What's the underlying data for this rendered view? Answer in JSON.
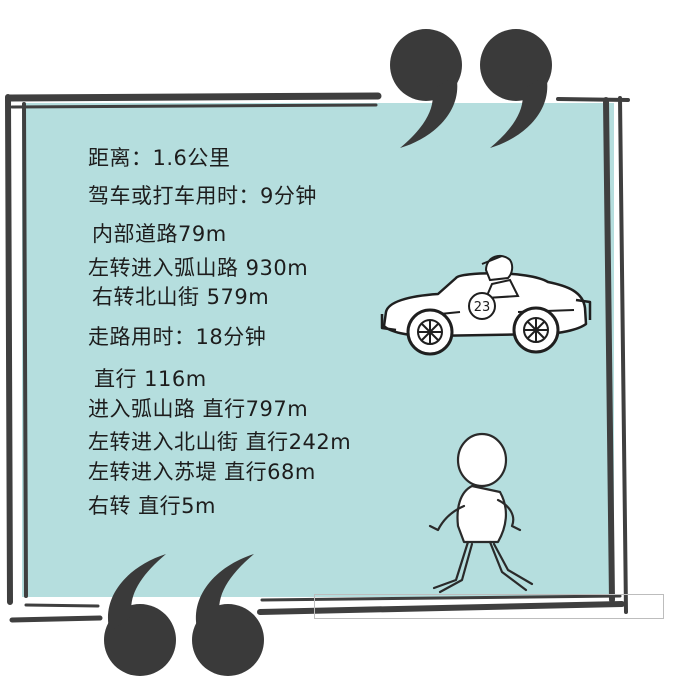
{
  "route_card": {
    "lines": [
      "距离：1.6公里",
      "驾车或打车用时：9分钟",
      "内部道路79m",
      "左转进入弧山路 930m",
      "右转北山街 579m",
      "走路用时：18分钟",
      "直行 116m",
      "进入弧山路 直行797m",
      "左转进入北山街 直行242m",
      "左转进入苏堤 直行68m",
      "右转 直行5m"
    ],
    "car_number": "23"
  },
  "colors": {
    "card_bg": "#b5dede",
    "frame": "#3f3f3f",
    "quote_marks": "#3a3a3a",
    "text": "#1d1d1d"
  }
}
